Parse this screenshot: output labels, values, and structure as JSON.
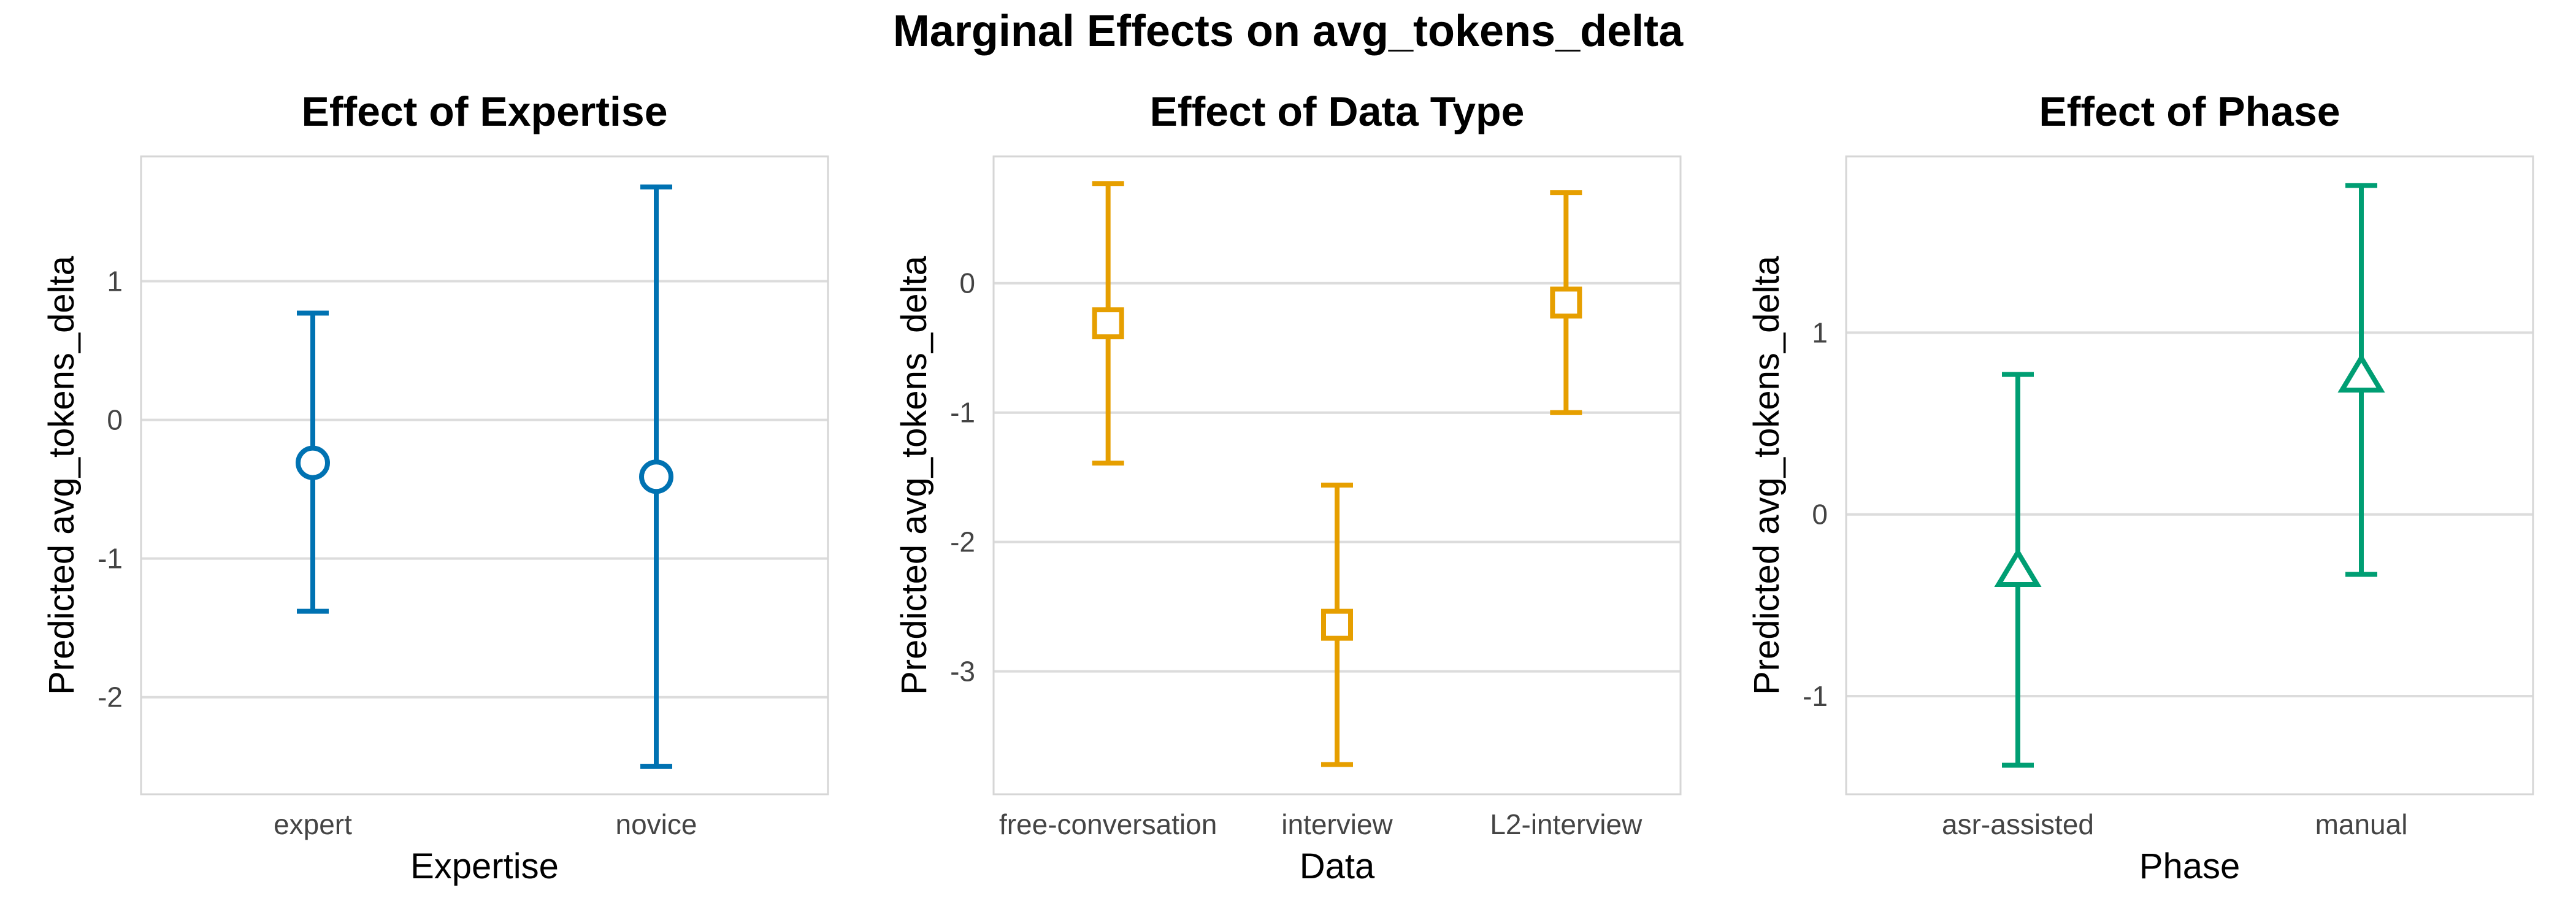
{
  "title": "Marginal Effects on avg_tokens_delta",
  "chart_data": [
    {
      "type": "scatter",
      "title": "Effect of Expertise",
      "xlabel": "Expertise",
      "ylabel": "Predicted avg_tokens_delta",
      "categories": [
        "expert",
        "novice"
      ],
      "values": [
        -0.31,
        -0.41
      ],
      "lower": [
        -1.38,
        -2.5
      ],
      "upper": [
        0.77,
        1.68
      ],
      "yticks": [
        1,
        0,
        -1,
        -2
      ],
      "ylim": [
        -2.7,
        1.9
      ],
      "color": "#0072B2",
      "marker": "circle",
      "grid": true
    },
    {
      "type": "scatter",
      "title": "Effect of Data Type",
      "xlabel": "Data",
      "ylabel": "Predicted avg_tokens_delta",
      "categories": [
        "free-conversation",
        "interview",
        "L2-interview"
      ],
      "values": [
        -0.31,
        -2.64,
        -0.15
      ],
      "lower": [
        -1.39,
        -3.72,
        -1.0
      ],
      "upper": [
        0.77,
        -1.56,
        0.7
      ],
      "yticks": [
        0,
        -1,
        -2,
        -3
      ],
      "ylim": [
        -3.95,
        0.98
      ],
      "color": "#E69F00",
      "marker": "square",
      "grid": true
    },
    {
      "type": "scatter",
      "title": "Effect of Phase",
      "xlabel": "Phase",
      "ylabel": "Predicted avg_tokens_delta",
      "categories": [
        "asr-assisted",
        "manual"
      ],
      "values": [
        -0.31,
        0.76
      ],
      "lower": [
        -1.38,
        -0.33
      ],
      "upper": [
        0.77,
        1.81
      ],
      "yticks": [
        1,
        0,
        -1
      ],
      "ylim": [
        -1.54,
        1.97
      ],
      "color": "#009E73",
      "marker": "triangle",
      "grid": true
    }
  ]
}
